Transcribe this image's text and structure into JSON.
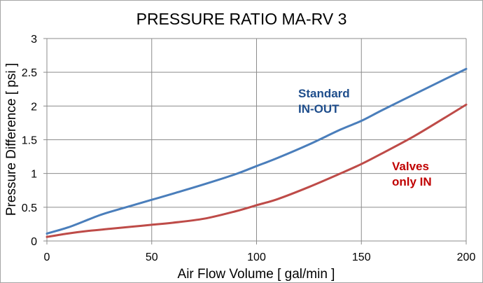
{
  "chart_data": {
    "type": "line",
    "title": "PRESSURE RATIO MA-RV 3",
    "xlabel": "Air Flow Volume [ gal/min ]",
    "ylabel": "Pressure Difference [ psi ]",
    "xlim": [
      0,
      200
    ],
    "ylim": [
      0,
      3
    ],
    "xticks": [
      0,
      50,
      100,
      150,
      200
    ],
    "xtick_labels": [
      "0",
      "50",
      "100",
      "150",
      "200"
    ],
    "yticks": [
      0,
      0.5,
      1,
      1.5,
      2,
      2.5,
      3
    ],
    "ytick_labels": [
      "0",
      "0.5",
      "1",
      "1.5",
      "2",
      "2.5",
      "3"
    ],
    "grid": true,
    "legend": "inline-labels",
    "series": [
      {
        "name": "Standard IN-OUT",
        "label_lines": [
          "Standard",
          "IN-OUT"
        ],
        "color": "#4a7ebb",
        "label_color": "#1f4e8c",
        "x": [
          0,
          10,
          20,
          25,
          30,
          40,
          50,
          60,
          75,
          90,
          100,
          110,
          125,
          140,
          150,
          160,
          175,
          190,
          200
        ],
        "y": [
          0.11,
          0.2,
          0.32,
          0.38,
          0.43,
          0.52,
          0.61,
          0.7,
          0.84,
          0.99,
          1.11,
          1.23,
          1.43,
          1.65,
          1.78,
          1.94,
          2.17,
          2.4,
          2.55
        ]
      },
      {
        "name": "Valves only IN",
        "label_lines": [
          "Valves",
          "only IN"
        ],
        "color": "#be4b48",
        "label_color": "#c00000",
        "x": [
          0,
          10,
          20,
          30,
          40,
          50,
          60,
          75,
          90,
          100,
          110,
          125,
          140,
          150,
          160,
          175,
          190,
          200
        ],
        "y": [
          0.06,
          0.11,
          0.15,
          0.18,
          0.21,
          0.24,
          0.27,
          0.33,
          0.44,
          0.53,
          0.62,
          0.8,
          1.0,
          1.14,
          1.3,
          1.55,
          1.83,
          2.02
        ]
      }
    ]
  }
}
